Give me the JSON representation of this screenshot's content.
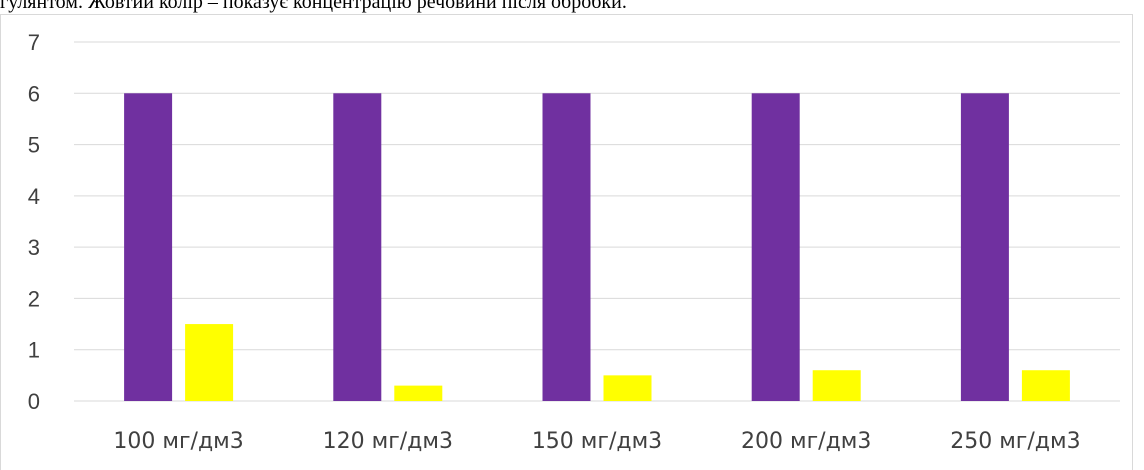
{
  "caption": "гулянтом. Жовтий колір – показує концентрацію речовини після обробки.",
  "chart_data": {
    "type": "bar",
    "categories": [
      "100 мг/дм3",
      "120 мг/дм3",
      "150 мг/дм3",
      "200 мг/дм3",
      "250 мг/дм3"
    ],
    "series": [
      {
        "values": [
          6,
          6,
          6,
          6,
          6
        ],
        "color": "#7030a0"
      },
      {
        "values": [
          1.5,
          0.3,
          0.5,
          0.6,
          0.6
        ],
        "color": "#ffff00"
      }
    ],
    "ylim": [
      0,
      7
    ],
    "yticks": [
      0,
      1,
      2,
      3,
      4,
      5,
      6,
      7
    ],
    "grid": true,
    "gridColor": "#d9d9d9"
  }
}
